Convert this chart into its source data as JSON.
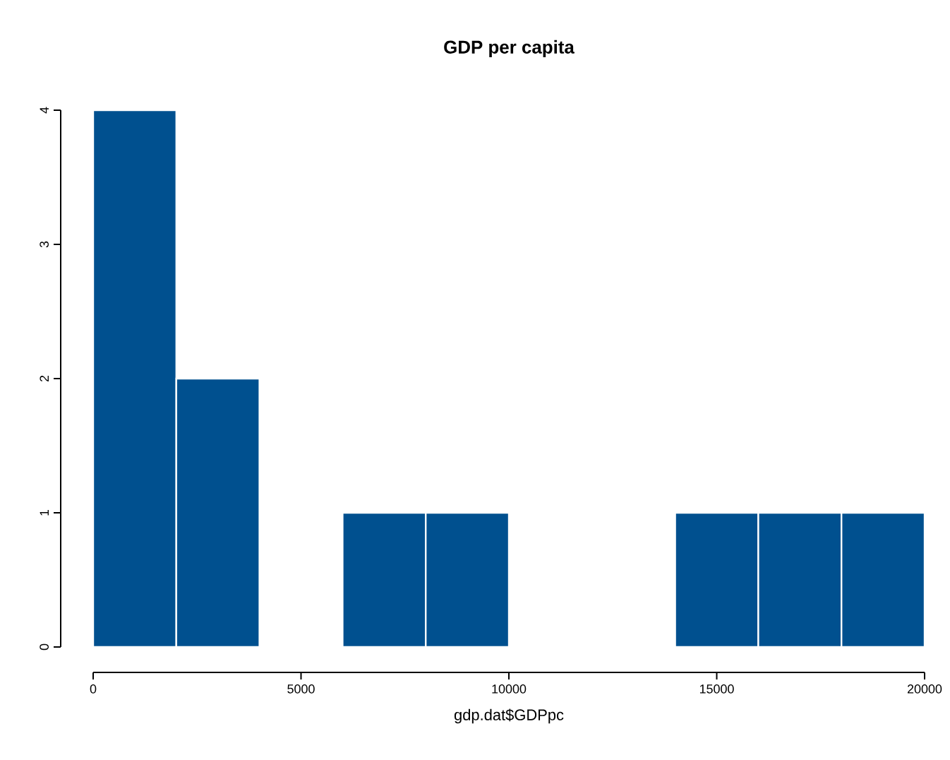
{
  "chart_data": {
    "type": "histogram",
    "title": "GDP per capita",
    "xlabel": "gdp.dat$GDPpc",
    "bins": [
      0,
      2000,
      4000,
      6000,
      8000,
      10000,
      12000,
      14000,
      16000,
      18000,
      20000
    ],
    "values": [
      4,
      2,
      0,
      1,
      1,
      0,
      0,
      1,
      1,
      1
    ],
    "color": "#00508f",
    "xlim": [
      0,
      20000
    ],
    "ylim": [
      0,
      4
    ],
    "xticks": [
      0,
      5000,
      10000,
      15000,
      20000
    ],
    "yticks": [
      0,
      1,
      2,
      3,
      4
    ]
  }
}
